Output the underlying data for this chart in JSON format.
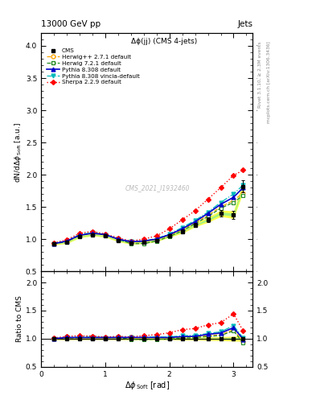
{
  "title_top": "13000 GeV pp",
  "title_right": "Jets",
  "plot_title": "Δϕ(jj) (CMS 4-jets)",
  "watermark": "CMS_2021_I1932460",
  "right_label1": "Rivet 3.1.10, ≥ 2.3M events",
  "right_label2": "mcplots.cern.ch [arXiv:1306.3436]",
  "x_data": [
    0.2,
    0.4,
    0.6,
    0.8,
    1.0,
    1.2,
    1.4,
    1.6,
    1.8,
    2.0,
    2.2,
    2.4,
    2.6,
    2.8,
    3.0,
    3.15
  ],
  "cms_y": [
    0.93,
    0.95,
    1.04,
    1.07,
    1.05,
    0.98,
    0.94,
    0.95,
    0.98,
    1.05,
    1.12,
    1.22,
    1.3,
    1.4,
    1.38,
    1.82
  ],
  "cms_err": [
    0.02,
    0.02,
    0.02,
    0.02,
    0.02,
    0.02,
    0.02,
    0.02,
    0.02,
    0.02,
    0.03,
    0.03,
    0.04,
    0.05,
    0.06,
    0.09
  ],
  "herwig271_y": [
    0.93,
    0.96,
    1.06,
    1.09,
    1.07,
    1.0,
    0.95,
    0.96,
    1.0,
    1.06,
    1.15,
    1.25,
    1.37,
    1.5,
    1.6,
    1.72
  ],
  "herwig721_y": [
    0.93,
    0.96,
    1.06,
    1.1,
    1.07,
    1.0,
    0.93,
    0.93,
    0.97,
    1.04,
    1.13,
    1.24,
    1.35,
    1.48,
    1.57,
    1.68
  ],
  "pythia308_y": [
    0.93,
    0.97,
    1.06,
    1.09,
    1.07,
    1.0,
    0.96,
    0.97,
    1.0,
    1.07,
    1.16,
    1.27,
    1.4,
    1.54,
    1.65,
    1.8
  ],
  "vincia_y": [
    0.93,
    0.97,
    1.07,
    1.1,
    1.07,
    1.0,
    0.96,
    0.97,
    1.01,
    1.08,
    1.18,
    1.29,
    1.42,
    1.57,
    1.7,
    1.84
  ],
  "sherpa_y": [
    0.94,
    0.99,
    1.09,
    1.12,
    1.08,
    1.02,
    0.97,
    1.0,
    1.05,
    1.16,
    1.3,
    1.44,
    1.62,
    1.8,
    1.99,
    2.07
  ],
  "colors": {
    "cms": "#000000",
    "herwig271": "#FFA500",
    "herwig721": "#228B22",
    "pythia308": "#0000CC",
    "vincia": "#00BBBB",
    "sherpa": "#FF0000"
  },
  "ylim_main": [
    0.5,
    4.2
  ],
  "ylim_ratio": [
    0.5,
    2.2
  ],
  "xlim": [
    0.0,
    3.3
  ],
  "ratio_yticks": [
    0.5,
    1.0,
    1.5,
    2.0
  ],
  "main_yticks": [
    0.5,
    1.0,
    1.5,
    2.0,
    2.5,
    3.0,
    3.5,
    4.0
  ]
}
